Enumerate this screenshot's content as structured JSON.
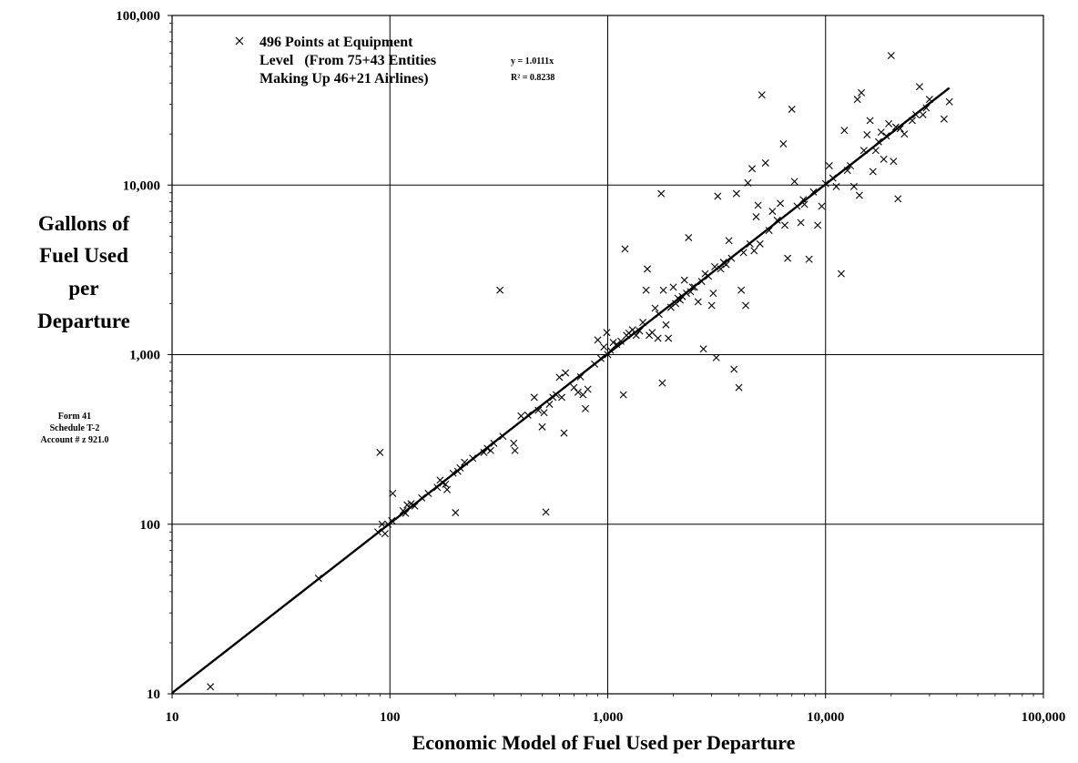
{
  "chart_data": {
    "type": "scatter",
    "x_scale": "log",
    "y_scale": "log",
    "xlim": [
      10,
      100000
    ],
    "ylim": [
      10,
      100000
    ],
    "grid": true,
    "xlabel": "Economic Model of Fuel Used per Departure",
    "ylabel_lines": [
      "Gallons of",
      "Fuel Used",
      "per",
      "Departure"
    ],
    "side_note_lines": [
      "Form 41",
      "Schedule T-2",
      "Account # z 921.0"
    ],
    "x_ticks": [
      {
        "value": 10,
        "label": "10"
      },
      {
        "value": 100,
        "label": "100"
      },
      {
        "value": 1000,
        "label": "1,000"
      },
      {
        "value": 10000,
        "label": "10,000"
      },
      {
        "value": 100000,
        "label": "100,000"
      }
    ],
    "y_ticks": [
      {
        "value": 10,
        "label": "10"
      },
      {
        "value": 100,
        "label": "100"
      },
      {
        "value": 1000,
        "label": "1,000"
      },
      {
        "value": 10000,
        "label": "10,000"
      },
      {
        "value": 100000,
        "label": "100,000"
      }
    ],
    "legend": {
      "placement": "top-left",
      "lines": [
        "496 Points at Equipment",
        "Level   (From 75+43 Entities",
        "Making Up 46+21 Airlines)"
      ]
    },
    "trendline": {
      "slope": 1.0111,
      "x_range": [
        10,
        37000
      ],
      "equation_lines": [
        "y = 1.0111x",
        "R² = 0.8238"
      ]
    },
    "series": [
      {
        "marker": "x",
        "points": [
          [
            15,
            11
          ],
          [
            47,
            48
          ],
          [
            88,
            90
          ],
          [
            90,
            265
          ],
          [
            92,
            100
          ],
          [
            95,
            88
          ],
          [
            98,
            100
          ],
          [
            102,
            105
          ],
          [
            103,
            152
          ],
          [
            115,
            120
          ],
          [
            118,
            116
          ],
          [
            120,
            130
          ],
          [
            125,
            132
          ],
          [
            130,
            128
          ],
          [
            140,
            143
          ],
          [
            150,
            152
          ],
          [
            165,
            165
          ],
          [
            170,
            182
          ],
          [
            175,
            175
          ],
          [
            180,
            172
          ],
          [
            183,
            160
          ],
          [
            195,
            200
          ],
          [
            200,
            117
          ],
          [
            205,
            205
          ],
          [
            210,
            215
          ],
          [
            220,
            232
          ],
          [
            240,
            245
          ],
          [
            270,
            265
          ],
          [
            280,
            280
          ],
          [
            290,
            272
          ],
          [
            300,
            300
          ],
          [
            320,
            2400
          ],
          [
            330,
            330
          ],
          [
            370,
            300
          ],
          [
            375,
            272
          ],
          [
            400,
            435
          ],
          [
            430,
            440
          ],
          [
            460,
            560
          ],
          [
            480,
            470
          ],
          [
            500,
            375
          ],
          [
            510,
            455
          ],
          [
            520,
            118
          ],
          [
            540,
            510
          ],
          [
            560,
            560
          ],
          [
            580,
            580
          ],
          [
            600,
            735
          ],
          [
            615,
            560
          ],
          [
            630,
            345
          ],
          [
            640,
            780
          ],
          [
            700,
            640
          ],
          [
            730,
            600
          ],
          [
            750,
            740
          ],
          [
            770,
            580
          ],
          [
            790,
            480
          ],
          [
            810,
            625
          ],
          [
            870,
            880
          ],
          [
            900,
            1220
          ],
          [
            930,
            950
          ],
          [
            960,
            1110
          ],
          [
            990,
            1350
          ],
          [
            1000,
            1000
          ],
          [
            1030,
            1060
          ],
          [
            1060,
            1180
          ],
          [
            1100,
            1150
          ],
          [
            1150,
            1200
          ],
          [
            1180,
            580
          ],
          [
            1200,
            4200
          ],
          [
            1220,
            1300
          ],
          [
            1250,
            1340
          ],
          [
            1300,
            1400
          ],
          [
            1350,
            1300
          ],
          [
            1400,
            1380
          ],
          [
            1450,
            1550
          ],
          [
            1500,
            2400
          ],
          [
            1520,
            3200
          ],
          [
            1550,
            1300
          ],
          [
            1600,
            1350
          ],
          [
            1650,
            1880
          ],
          [
            1700,
            1250
          ],
          [
            1720,
            1730
          ],
          [
            1760,
            8900
          ],
          [
            1780,
            680
          ],
          [
            1800,
            2400
          ],
          [
            1850,
            1500
          ],
          [
            1900,
            1250
          ],
          [
            1950,
            1900
          ],
          [
            2000,
            2500
          ],
          [
            2050,
            2000
          ],
          [
            2100,
            2150
          ],
          [
            2150,
            2100
          ],
          [
            2200,
            2200
          ],
          [
            2250,
            2750
          ],
          [
            2300,
            2300
          ],
          [
            2350,
            4900
          ],
          [
            2400,
            2350
          ],
          [
            2450,
            2500
          ],
          [
            2500,
            2500
          ],
          [
            2600,
            2050
          ],
          [
            2700,
            2700
          ],
          [
            2750,
            1080
          ],
          [
            2800,
            3000
          ],
          [
            2900,
            2900
          ],
          [
            3000,
            1950
          ],
          [
            3050,
            2300
          ],
          [
            3100,
            3300
          ],
          [
            3150,
            960
          ],
          [
            3200,
            8600
          ],
          [
            3300,
            3200
          ],
          [
            3400,
            3500
          ],
          [
            3500,
            3400
          ],
          [
            3600,
            4700
          ],
          [
            3700,
            3700
          ],
          [
            3800,
            820
          ],
          [
            3900,
            8900
          ],
          [
            4000,
            640
          ],
          [
            4100,
            2400
          ],
          [
            4200,
            4000
          ],
          [
            4300,
            1950
          ],
          [
            4400,
            10300
          ],
          [
            4500,
            4500
          ],
          [
            4600,
            12500
          ],
          [
            4700,
            4100
          ],
          [
            4800,
            6500
          ],
          [
            4900,
            7600
          ],
          [
            5000,
            4500
          ],
          [
            5100,
            34000
          ],
          [
            5300,
            13500
          ],
          [
            5500,
            5400
          ],
          [
            5700,
            7000
          ],
          [
            6000,
            6200
          ],
          [
            6200,
            7800
          ],
          [
            6400,
            17500
          ],
          [
            6500,
            5800
          ],
          [
            6700,
            3700
          ],
          [
            7000,
            28000
          ],
          [
            7200,
            10500
          ],
          [
            7400,
            7500
          ],
          [
            7700,
            6000
          ],
          [
            7900,
            8200
          ],
          [
            8000,
            7700
          ],
          [
            8400,
            3650
          ],
          [
            8800,
            9100
          ],
          [
            9200,
            5800
          ],
          [
            9600,
            7500
          ],
          [
            10000,
            10200
          ],
          [
            10400,
            13000
          ],
          [
            10800,
            11000
          ],
          [
            11200,
            9800
          ],
          [
            11800,
            3000
          ],
          [
            12200,
            21000
          ],
          [
            12600,
            12200
          ],
          [
            13000,
            13000
          ],
          [
            13500,
            9800
          ],
          [
            14000,
            32000
          ],
          [
            14300,
            8700
          ],
          [
            14600,
            35000
          ],
          [
            15000,
            16000
          ],
          [
            15500,
            19800
          ],
          [
            16000,
            24000
          ],
          [
            16500,
            12000
          ],
          [
            17000,
            16000
          ],
          [
            17500,
            18000
          ],
          [
            18000,
            20500
          ],
          [
            18500,
            14200
          ],
          [
            19000,
            19500
          ],
          [
            19500,
            23000
          ],
          [
            20000,
            58000
          ],
          [
            20500,
            13800
          ],
          [
            21000,
            22000
          ],
          [
            21500,
            8300
          ],
          [
            22000,
            21500
          ],
          [
            23000,
            20000
          ],
          [
            25000,
            24000
          ],
          [
            26000,
            26000
          ],
          [
            27000,
            38000
          ],
          [
            28000,
            26000
          ],
          [
            29000,
            28500
          ],
          [
            30000,
            32000
          ],
          [
            35000,
            24500
          ],
          [
            37000,
            31000
          ]
        ]
      }
    ]
  }
}
